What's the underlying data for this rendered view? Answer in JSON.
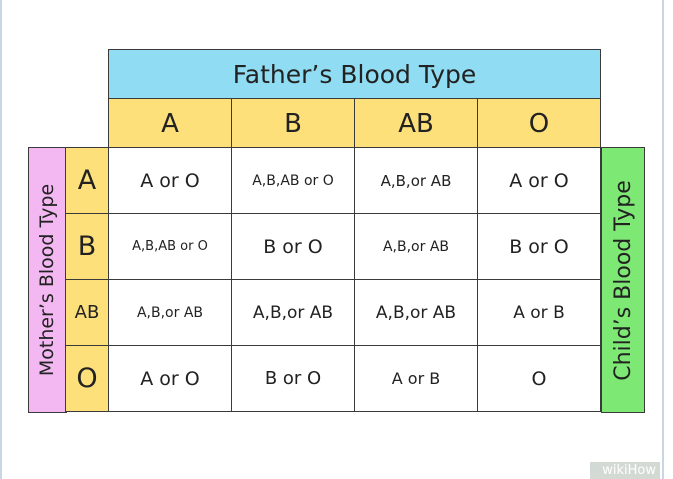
{
  "title": "Father’s Blood Type",
  "father_types": [
    "A",
    "B",
    "AB",
    "O"
  ],
  "mother_label": "Mother’s Blood Type",
  "mother_types": [
    "A",
    "B",
    "AB",
    "O"
  ],
  "child_label": "Child’s Blood Type",
  "cells": [
    [
      "A or O",
      "A,B,AB or O",
      "A,B,or AB",
      "A or O"
    ],
    [
      "A,B,AB or O",
      "B or O",
      "A,B,or AB",
      "B or O"
    ],
    [
      "A,B,or AB",
      "A,B,or AB",
      "A,B,or AB",
      "A or B"
    ],
    [
      "A or O",
      "B or O",
      "A or B",
      "O"
    ]
  ],
  "watermark": "wikiHow",
  "colors": {
    "father_header": "#8fdcf3",
    "type_headers": "#fde07a",
    "mother_side": "#f3b8f2",
    "child_side": "#7de873"
  }
}
